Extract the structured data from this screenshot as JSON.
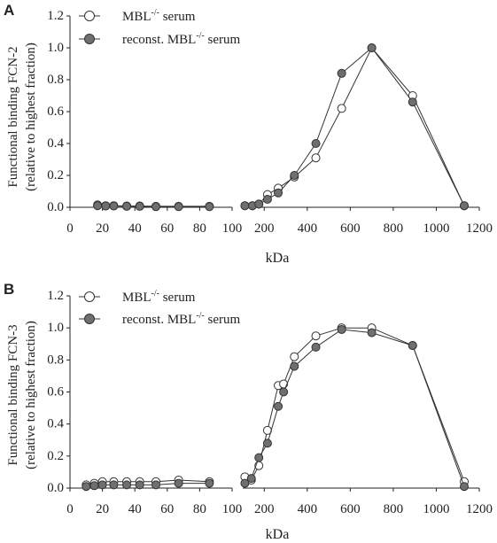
{
  "chart_data": [
    {
      "type": "scatter",
      "panel": "A",
      "ylabel": "Functional binding FCN-2",
      "ylabel_sub": "(relative to highest fraction)",
      "xlabel": "kDa",
      "xlim": [
        0,
        1200
      ],
      "ylim": [
        0,
        1.2
      ],
      "y_ticks": [
        "0.0",
        "0.2",
        "0.4",
        "0.6",
        "0.8",
        "1.0",
        "1.2"
      ],
      "x_ticks_left": [
        "0",
        "20",
        "40",
        "60",
        "80",
        "100"
      ],
      "x_ticks_right": [
        "200",
        "400",
        "600",
        "800",
        "1000",
        "1200"
      ],
      "broken_axis": true,
      "series": [
        {
          "name": "MBL⁻/⁻ serum",
          "name_base": "MBL",
          "name_sup": "-/-",
          "name_rest": " serum",
          "marker": "open-circle",
          "left_x": [
            17,
            22,
            27,
            35,
            43,
            53,
            67,
            86
          ],
          "left_y": [
            0.015,
            0.01,
            0.01,
            0.008,
            0.008,
            0.006,
            0.006,
            0.006
          ],
          "right_x": [
            110,
            145,
            175,
            215,
            265,
            340,
            440,
            560,
            700,
            890,
            1130
          ],
          "right_y": [
            0.01,
            0.01,
            0.02,
            0.08,
            0.12,
            0.19,
            0.31,
            0.62,
            1.0,
            0.7,
            0.01
          ]
        },
        {
          "name": "reconst. MBL⁻/⁻ serum",
          "name_base": "reconst. MBL",
          "name_sup": "-/-",
          "name_rest": " serum",
          "marker": "filled-circle",
          "left_x": [
            17,
            22,
            27,
            35,
            43,
            53,
            67,
            86
          ],
          "left_y": [
            0.01,
            0.008,
            0.008,
            0.006,
            0.006,
            0.004,
            0.004,
            0.004
          ],
          "right_x": [
            110,
            145,
            175,
            215,
            265,
            340,
            440,
            560,
            700,
            890,
            1130
          ],
          "right_y": [
            0.01,
            0.01,
            0.02,
            0.05,
            0.09,
            0.2,
            0.4,
            0.84,
            1.0,
            0.66,
            0.01
          ]
        }
      ]
    },
    {
      "type": "scatter",
      "panel": "B",
      "ylabel": "Functional binding FCN-3",
      "ylabel_sub": "(relative to highest fraction)",
      "xlabel": "kDa",
      "xlim": [
        0,
        1200
      ],
      "ylim": [
        0,
        1.2
      ],
      "y_ticks": [
        "0.0",
        "0.2",
        "0.4",
        "0.6",
        "0.8",
        "1.0",
        "1.2"
      ],
      "x_ticks_left": [
        "0",
        "20",
        "40",
        "60",
        "80",
        "100"
      ],
      "x_ticks_right": [
        "200",
        "400",
        "600",
        "800",
        "1000",
        "1200"
      ],
      "broken_axis": true,
      "series": [
        {
          "name": "MBL⁻/⁻ serum",
          "name_base": "MBL",
          "name_sup": "-/-",
          "name_rest": " serum",
          "marker": "open-circle",
          "left_x": [
            10,
            15,
            20,
            27,
            35,
            43,
            53,
            67,
            86
          ],
          "left_y": [
            0.02,
            0.03,
            0.04,
            0.04,
            0.04,
            0.04,
            0.04,
            0.05,
            0.04
          ],
          "right_x": [
            110,
            140,
            175,
            215,
            265,
            290,
            340,
            440,
            560,
            700,
            890,
            1130
          ],
          "right_y": [
            0.07,
            0.05,
            0.14,
            0.36,
            0.64,
            0.65,
            0.82,
            0.95,
            1.0,
            1.0,
            0.89,
            0.04
          ]
        },
        {
          "name": "reconst. MBL⁻/⁻ serum",
          "name_base": "reconst. MBL",
          "name_sup": "-/-",
          "name_rest": " serum",
          "marker": "filled-circle",
          "left_x": [
            10,
            15,
            20,
            27,
            35,
            43,
            53,
            67,
            86
          ],
          "left_y": [
            0.01,
            0.015,
            0.02,
            0.02,
            0.02,
            0.02,
            0.02,
            0.03,
            0.03
          ],
          "right_x": [
            110,
            140,
            175,
            215,
            265,
            290,
            340,
            440,
            560,
            700,
            890,
            1130
          ],
          "right_y": [
            0.03,
            0.06,
            0.19,
            0.28,
            0.51,
            0.6,
            0.76,
            0.88,
            0.99,
            0.97,
            0.89,
            0.01
          ]
        }
      ]
    }
  ],
  "colors": {
    "open_fill": "#ffffff",
    "filled": "#6f6f6f",
    "line": "#333333",
    "axis": "#222222"
  }
}
